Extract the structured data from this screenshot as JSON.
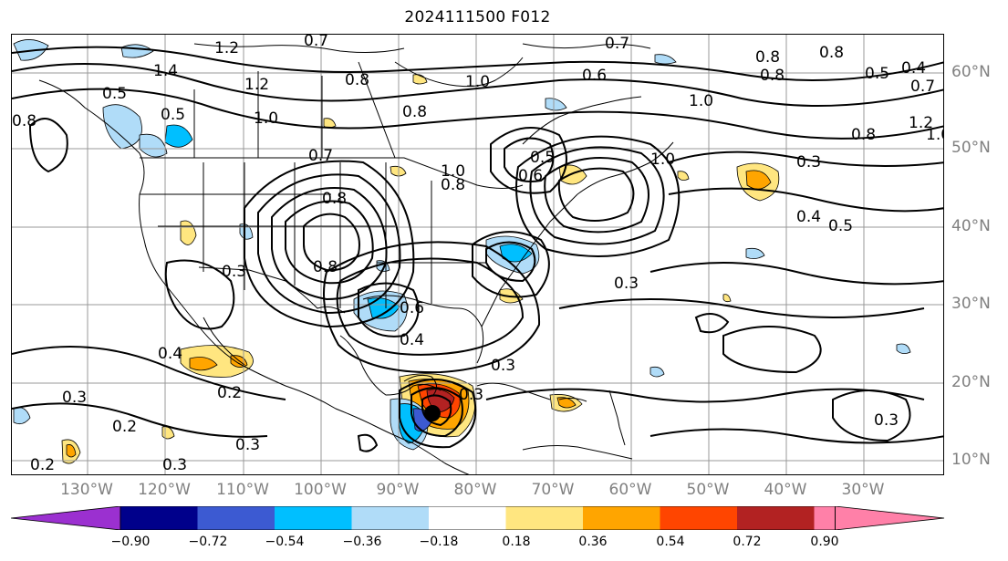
{
  "title": "2024111500 F012",
  "lon_labels": [
    "130°W",
    "120°W",
    "110°W",
    "100°W",
    "90°W",
    "80°W",
    "70°W",
    "60°W",
    "50°W",
    "40°W",
    "30°W"
  ],
  "lat_labels": [
    "60°N",
    "50°N",
    "40°N",
    "30°N",
    "20°N",
    "10°N"
  ],
  "colorbar": {
    "ticks": [
      "−0.90",
      "−0.72",
      "−0.54",
      "−0.36",
      "−0.18",
      "0.18",
      "0.36",
      "0.54",
      "0.72",
      "0.90"
    ],
    "colors": [
      "#9b30d0",
      "#00008b",
      "#3c5ad2",
      "#00bfff",
      "#b0dcf8",
      "#ffffff",
      "#ffe680",
      "#ffa500",
      "#ff4500",
      "#b22222",
      "#ff80a8"
    ]
  },
  "contour_labels": [
    "1.2",
    "0.7",
    "1.4",
    "1.2",
    "0.8",
    "1.0",
    "0.7",
    "0.6",
    "0.8",
    "0.8",
    "0.5",
    "0.4",
    "0.7",
    "0.8",
    "0.5",
    "1.0",
    "0.8",
    "0.5",
    "1.0",
    "0.7",
    "1.2",
    "1.0",
    "0.8",
    "0.3",
    "0.8",
    "0.6",
    "0.5",
    "0.8",
    "1.0",
    "1.0",
    "0.4",
    "0.5",
    "0.8",
    "0.3",
    "0.3",
    "0.8",
    "0.4",
    "0.3",
    "0.4",
    "0.3",
    "0.2",
    "0.2",
    "0.3",
    "0.3",
    "0.2",
    "0.3",
    "0.3",
    "0.6"
  ]
}
